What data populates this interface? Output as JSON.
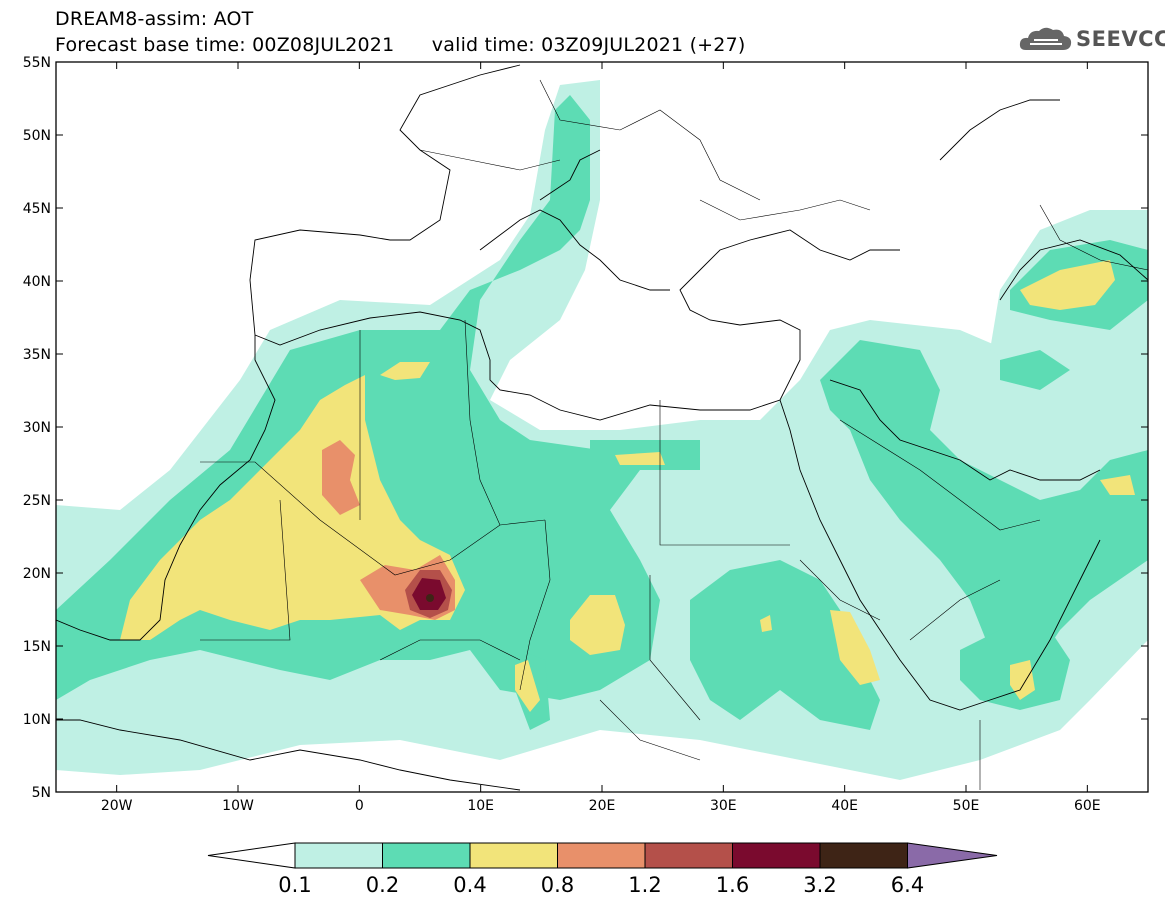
{
  "header": {
    "title": "DREAM8-assim: AOT",
    "base_time_label": "Forecast base time: 00Z08JUL2021",
    "valid_time_label": "valid time: 03Z09JUL2021 (+27)"
  },
  "logo": {
    "text": "SEEVCCC",
    "icon": "cloud-icon"
  },
  "map": {
    "lon_range": [
      -25,
      65
    ],
    "lat_range": [
      5,
      55
    ],
    "lat_ticks": [
      "55N",
      "50N",
      "45N",
      "40N",
      "35N",
      "30N",
      "25N",
      "20N",
      "15N",
      "10N",
      "5N"
    ],
    "lon_ticks": [
      "20W",
      "10W",
      "0",
      "10E",
      "20E",
      "30E",
      "40E",
      "50E",
      "60E"
    ]
  },
  "colorbar": {
    "levels": [
      "0.1",
      "0.2",
      "0.4",
      "0.8",
      "1.2",
      "1.6",
      "3.2",
      "6.4"
    ],
    "colors": [
      "#ffffff",
      "#bff0e4",
      "#5ddcb4",
      "#f2e47a",
      "#e8906a",
      "#b4504a",
      "#7a0a2e",
      "#3e2416",
      "#8a6aa8"
    ]
  }
}
